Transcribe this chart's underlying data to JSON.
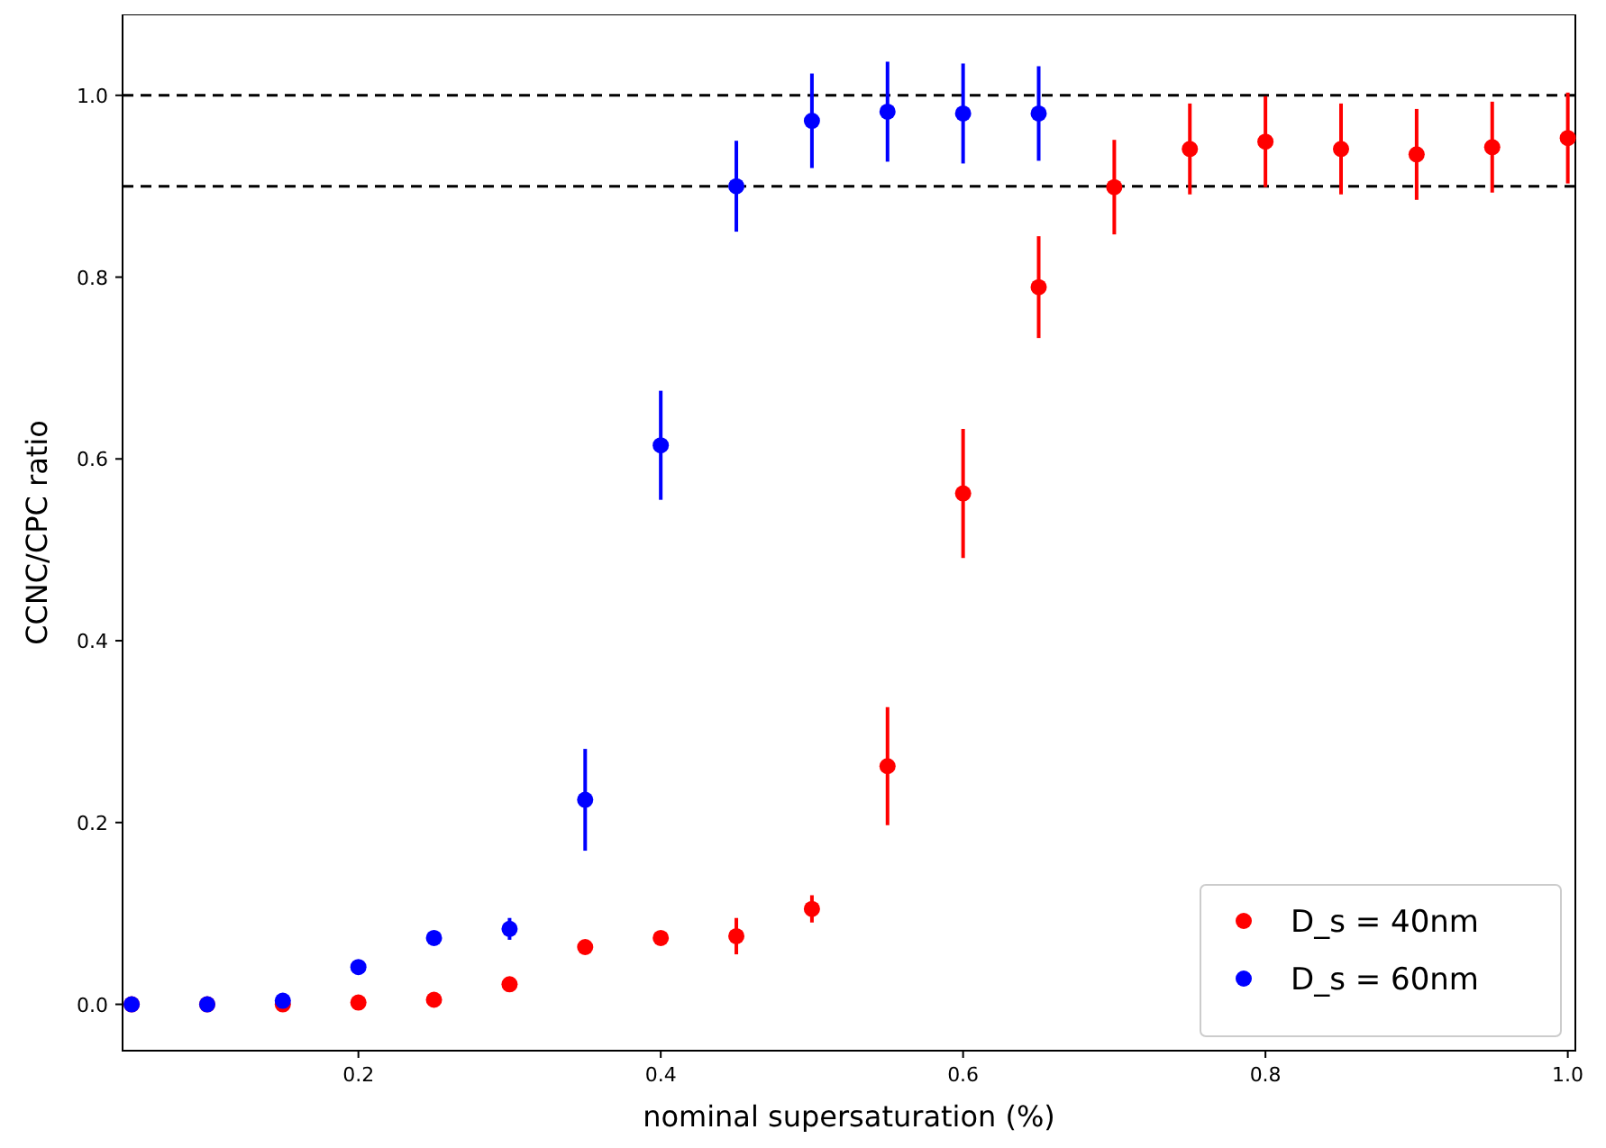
{
  "chart_data": {
    "type": "scatter",
    "xlabel": "nominal supersaturation (%)",
    "ylabel": "CCNC/CPC ratio",
    "xlim": [
      0.044,
      1.005
    ],
    "ylim": [
      -0.051,
      1.089
    ],
    "xticks": [
      0.2,
      0.4,
      0.6,
      0.8,
      {
        "value": 1.0,
        "label": "1.0"
      }
    ],
    "yticks": [
      {
        "value": 0,
        "label": "0.0"
      },
      0.2,
      0.4,
      0.6,
      0.8,
      {
        "value": 1.0,
        "label": "1.0"
      }
    ],
    "marker": "circle",
    "legend": "bottom right",
    "grid": false,
    "ref_lines": [
      {
        "axis": "y",
        "value": 1.0,
        "color": "#000000",
        "line_style": "dashed"
      },
      {
        "axis": "y",
        "value": 0.9,
        "color": "#000000",
        "line_style": "dashed"
      }
    ],
    "series": [
      {
        "name": "D_s = 40nm",
        "color": "#ff0000",
        "x": [
          0.05,
          0.1,
          0.15,
          0.2,
          0.25,
          0.3,
          0.35,
          0.4,
          0.45,
          0.5,
          0.55,
          0.6,
          0.65,
          0.7,
          0.75,
          0.8,
          0.85,
          0.9,
          0.95,
          1.0
        ],
        "values": [
          0,
          0,
          0,
          0.002,
          0.005,
          0.022,
          0.063,
          0.073,
          0.075,
          0.105,
          0.262,
          0.562,
          0.789,
          0.899,
          0.941,
          0.949,
          0.941,
          0.935,
          0.943,
          0.953
        ],
        "errors": [
          null,
          null,
          null,
          null,
          0.004,
          0.005,
          0.006,
          0.006,
          0.02,
          0.015,
          0.065,
          0.071,
          0.056,
          0.052,
          0.05,
          0.05,
          0.05,
          0.05,
          0.05,
          0.05
        ]
      },
      {
        "name": "D_s = 60nm",
        "color": "#0000ff",
        "x": [
          0.05,
          0.1,
          0.15,
          0.2,
          0.25,
          0.3,
          0.35,
          0.4,
          0.45,
          0.5,
          0.55,
          0.6,
          0.65
        ],
        "values": [
          0,
          0,
          0.004,
          0.041,
          0.073,
          0.083,
          0.225,
          0.615,
          0.9,
          0.972,
          0.982,
          0.98,
          0.98
        ],
        "errors": [
          null,
          null,
          0.004,
          0.005,
          0.008,
          0.012,
          0.056,
          0.06,
          0.05,
          0.052,
          0.055,
          0.055,
          0.052
        ]
      }
    ]
  }
}
